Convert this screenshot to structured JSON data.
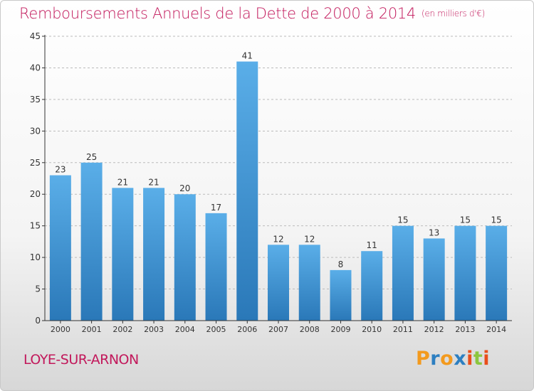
{
  "title": "Remboursements Annuels de la Dette de 2000 à 2014",
  "subtitle": "(en milliers d'€)",
  "place_name": "LOYE-SUR-ARNON",
  "logo": {
    "letters": [
      "P",
      "r",
      "o",
      "x",
      "i",
      "t",
      "i"
    ],
    "colors": [
      "#f39a1e",
      "#2d7fc1",
      "#f39a1e",
      "#2d7fc1",
      "#e94e1b",
      "#8cc63f",
      "#e94e1b"
    ]
  },
  "colors": {
    "title": "#c2185b",
    "bar_top": "#5aaee8",
    "bar_bottom": "#2a78b8",
    "axis": "#333333",
    "grid": "#bbbbbb"
  },
  "chart_data": {
    "type": "bar",
    "title": "Remboursements Annuels de la Dette de 2000 à 2014",
    "subtitle": "(en milliers d'€)",
    "xlabel": "",
    "ylabel": "",
    "categories": [
      "2000",
      "2001",
      "2002",
      "2003",
      "2004",
      "2005",
      "2006",
      "2007",
      "2008",
      "2009",
      "2010",
      "2011",
      "2012",
      "2013",
      "2014"
    ],
    "values": [
      23,
      25,
      21,
      21,
      20,
      17,
      41,
      12,
      12,
      8,
      11,
      15,
      13,
      15,
      15
    ],
    "ylim": [
      0,
      45
    ],
    "yticks": [
      0,
      5,
      10,
      15,
      20,
      25,
      30,
      35,
      40,
      45
    ],
    "grid": true
  }
}
